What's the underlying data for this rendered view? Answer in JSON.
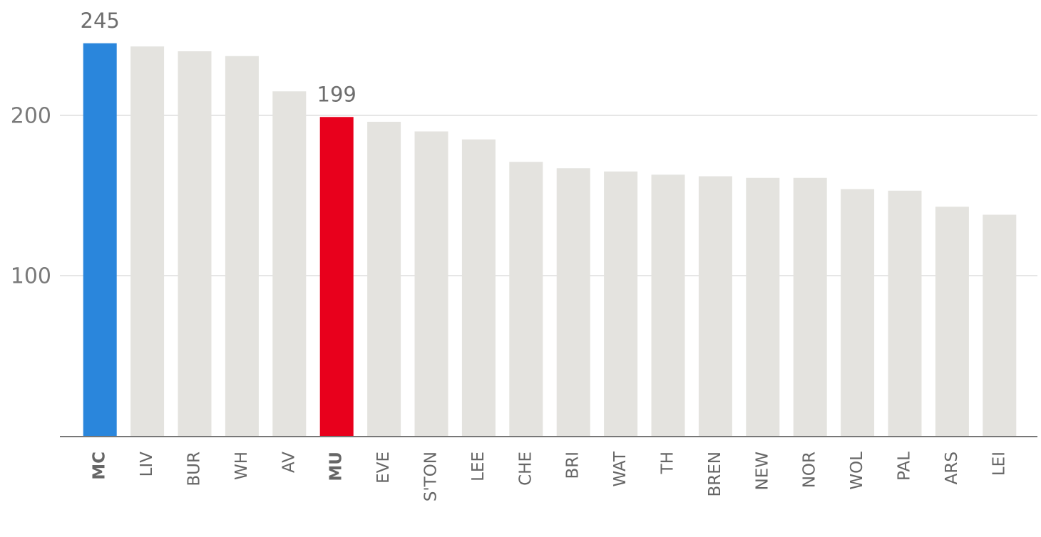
{
  "chart_data": {
    "type": "bar",
    "categories": [
      "MC",
      "LIV",
      "BUR",
      "WH",
      "AV",
      "MU",
      "EVE",
      "S'TON",
      "LEE",
      "CHE",
      "BRI",
      "WAT",
      "TH",
      "BREN",
      "NEW",
      "NOR",
      "WOL",
      "PAL",
      "ARS",
      "LEI"
    ],
    "values": [
      245,
      243,
      240,
      237,
      215,
      199,
      196,
      190,
      185,
      171,
      167,
      165,
      163,
      162,
      161,
      161,
      154,
      153,
      143,
      138
    ],
    "value_labels": [
      "245",
      null,
      null,
      null,
      null,
      "199",
      null,
      null,
      null,
      null,
      null,
      null,
      null,
      null,
      null,
      null,
      null,
      null,
      null,
      null
    ],
    "colors": [
      "#2a86dc",
      "#e4e3df",
      "#e4e3df",
      "#e4e3df",
      "#e4e3df",
      "#e8001c",
      "#e4e3df",
      "#e4e3df",
      "#e4e3df",
      "#e4e3df",
      "#e4e3df",
      "#e4e3df",
      "#e4e3df",
      "#e4e3df",
      "#e4e3df",
      "#e4e3df",
      "#e4e3df",
      "#e4e3df",
      "#e4e3df",
      "#e4e3df"
    ],
    "ylim": [
      0,
      272
    ],
    "yticks": [
      100,
      200
    ],
    "grid": true
  }
}
